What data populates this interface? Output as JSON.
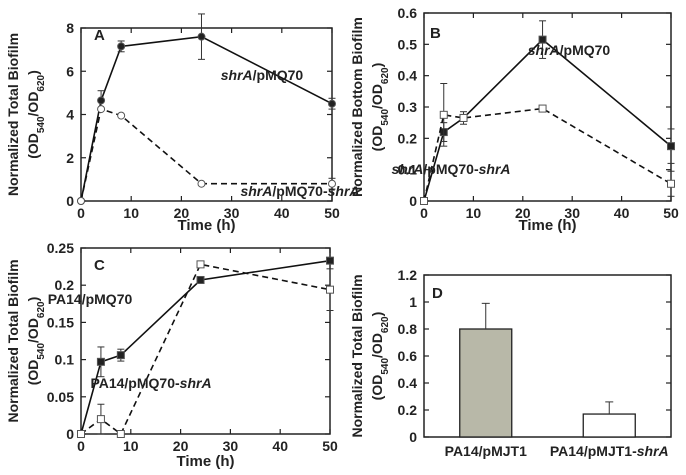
{
  "chart_data": [
    {
      "panel": "A",
      "type": "line",
      "xlabel": "Time (h)",
      "ylabel": "Normalized Total Biofilm",
      "ylabel_units": "(OD540/OD620)",
      "xlim": [
        0,
        50
      ],
      "ylim": [
        0,
        8
      ],
      "xticks": [
        0,
        10,
        20,
        30,
        40,
        50
      ],
      "yticks": [
        0,
        2,
        4,
        6,
        8
      ],
      "series": [
        {
          "name": "shrA/pMQ70",
          "style": "solid",
          "marker": "filled-circle",
          "x": [
            0,
            4,
            8,
            24,
            50
          ],
          "y": [
            0,
            4.65,
            7.15,
            7.6,
            4.5
          ],
          "err": [
            0,
            0.45,
            0.25,
            1.05,
            0.25
          ]
        },
        {
          "name": "shrA/pMQ70-shrA",
          "style": "dashed",
          "marker": "open-circle",
          "x": [
            0,
            4,
            8,
            24,
            50
          ],
          "y": [
            0,
            4.25,
            3.95,
            0.8,
            0.8
          ],
          "err": [
            0,
            0,
            0,
            0,
            0.25
          ]
        }
      ],
      "annotations": [
        {
          "series": "shrA/pMQ70",
          "strain": "shrA",
          "plasmid": "/pMQ70"
        },
        {
          "series": "shrA/pMQ70-shrA",
          "strain": "shrA",
          "plasmid": "/pMQ70-",
          "suffix": "shrA"
        }
      ]
    },
    {
      "panel": "B",
      "type": "line",
      "xlabel": "Time (h)",
      "ylabel": "Normalized Bottom Biofilm",
      "ylabel_units": "(OD540/OD620)",
      "xlim": [
        0,
        50
      ],
      "ylim": [
        0,
        0.6
      ],
      "xticks": [
        0,
        10,
        20,
        30,
        40,
        50
      ],
      "yticks": [
        0,
        0.1,
        0.2,
        0.3,
        0.4,
        0.5,
        0.6
      ],
      "series": [
        {
          "name": "shrA/pMQ70",
          "style": "solid",
          "marker": "filled-square",
          "x": [
            0,
            4,
            8,
            24,
            50
          ],
          "y": [
            0,
            0.22,
            0.265,
            0.515,
            0.175
          ],
          "err": [
            0,
            0.03,
            0.02,
            0.06,
            0.055
          ]
        },
        {
          "name": "shrA/pMQ70-shrA",
          "style": "dashed",
          "marker": "open-square",
          "x": [
            0,
            4,
            8,
            24,
            50
          ],
          "y": [
            0,
            0.275,
            0.265,
            0.295,
            0.055
          ],
          "err": [
            0,
            0.1,
            0.01,
            0.01,
            0.04
          ]
        }
      ],
      "annotations": [
        {
          "series": "shrA/pMQ70",
          "strain": "shrA",
          "plasmid": "/pMQ70"
        },
        {
          "series": "shrA/pMQ70-shrA",
          "strain": "shrA",
          "plasmid": "/pMQ70-",
          "suffix": "shrA"
        }
      ]
    },
    {
      "panel": "C",
      "type": "line",
      "xlabel": "Time (h)",
      "ylabel": "Normalized Total Biofilm",
      "ylabel_units": "(OD540/OD620)",
      "xlim": [
        0,
        50
      ],
      "ylim": [
        0,
        0.25
      ],
      "xticks": [
        0,
        10,
        20,
        30,
        40,
        50
      ],
      "yticks": [
        0,
        0.05,
        0.1,
        0.15,
        0.2,
        0.25
      ],
      "series": [
        {
          "name": "PA14/pMQ70",
          "style": "solid",
          "marker": "filled-square",
          "x": [
            0,
            4,
            8,
            24,
            50
          ],
          "y": [
            0,
            0.097,
            0.106,
            0.207,
            0.233
          ],
          "err": [
            0,
            0.02,
            0.008,
            0,
            0
          ]
        },
        {
          "name": "PA14/pMQ70-shrA",
          "style": "dashed",
          "marker": "open-square",
          "x": [
            0,
            4,
            8,
            24,
            50
          ],
          "y": [
            0,
            0.02,
            0.0,
            0.228,
            0.194
          ],
          "err": [
            0,
            0.02,
            0,
            0,
            0.028
          ]
        }
      ],
      "annotations": [
        {
          "series": "PA14/pMQ70",
          "strain": "PA14",
          "plasmid": "/pMQ70"
        },
        {
          "series": "PA14/pMQ70-shrA",
          "strain": "PA14",
          "plasmid": "/pMQ70-",
          "suffix": "shrA"
        }
      ]
    },
    {
      "panel": "D",
      "type": "bar",
      "xlabel": "",
      "ylabel": "Normalized Total Biofilm",
      "ylabel_units": "(OD540/OD620)",
      "ylim": [
        0,
        1.2
      ],
      "yticks": [
        0,
        0.2,
        0.4,
        0.6,
        0.8,
        1.0,
        1.2
      ],
      "categories": [
        "PA14/pMJT1",
        "PA14/pMJT1-shrA"
      ],
      "category_parts": [
        {
          "base": "PA14/pMJT1",
          "italic": ""
        },
        {
          "base": "PA14/pMJT1-",
          "italic": "shrA"
        }
      ],
      "values": [
        0.8,
        0.17
      ],
      "err": [
        0.19,
        0.09
      ],
      "colors": [
        "#b8b8a8",
        "#ffffff"
      ]
    }
  ],
  "units_parts": {
    "open": "(OD",
    "sub1": "540",
    "mid": "/OD",
    "sub2": "620",
    "close": ")"
  }
}
